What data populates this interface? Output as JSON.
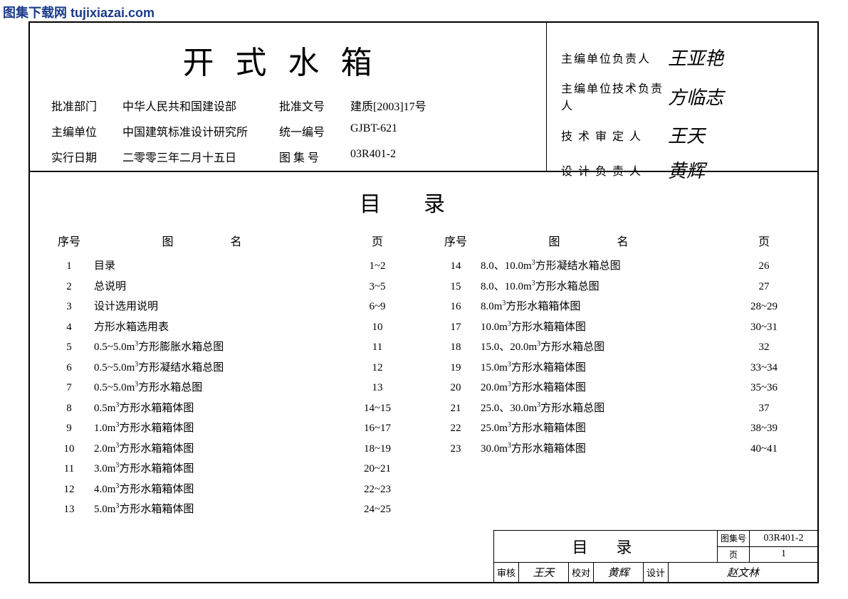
{
  "watermark": "图集下载网 tujixiazai.com",
  "title": "开式水箱",
  "meta": {
    "r1c1_label": "批准部门",
    "r1c1_val": "中华人民共和国建设部",
    "r1c2_label": "批准文号",
    "r1c2_val": "建质[2003]17号",
    "r2c1_label": "主编单位",
    "r2c1_val": "中国建筑标准设计研究所",
    "r2c2_label": "统一编号",
    "r2c2_val": "GJBT-621",
    "r3c1_label": "实行日期",
    "r3c1_val": "二零零三年二月十五日",
    "r3c2_label": "图 集 号",
    "r3c2_val": "03R401-2"
  },
  "signers": {
    "s1_label": "主编单位负责人",
    "s1_val": "王亚艳",
    "s2_label": "主编单位技术负责人",
    "s2_val": "方临志",
    "s3_label": "技 术 审 定 人",
    "s3_val": "王天",
    "s4_label": "设 计 负 责 人",
    "s4_val": "黄辉"
  },
  "toc_title": "目录",
  "toc_head": {
    "num": "序号",
    "name": "图名",
    "page": "页"
  },
  "toc_left": [
    {
      "n": "1",
      "name": "目录",
      "p": "1~2"
    },
    {
      "n": "2",
      "name": "总说明",
      "p": "3~5"
    },
    {
      "n": "3",
      "name": "设计选用说明",
      "p": "6~9"
    },
    {
      "n": "4",
      "name": "方形水箱选用表",
      "p": "10"
    },
    {
      "n": "5",
      "name": "0.5~5.0m³方形膨胀水箱总图",
      "p": "11"
    },
    {
      "n": "6",
      "name": "0.5~5.0m³方形凝结水箱总图",
      "p": "12"
    },
    {
      "n": "7",
      "name": "0.5~5.0m³方形水箱总图",
      "p": "13"
    },
    {
      "n": "8",
      "name": "0.5m³方形水箱箱体图",
      "p": "14~15"
    },
    {
      "n": "9",
      "name": "1.0m³方形水箱箱体图",
      "p": "16~17"
    },
    {
      "n": "10",
      "name": "2.0m³方形水箱箱体图",
      "p": "18~19"
    },
    {
      "n": "11",
      "name": "3.0m³方形水箱箱体图",
      "p": "20~21"
    },
    {
      "n": "12",
      "name": "4.0m³方形水箱箱体图",
      "p": "22~23"
    },
    {
      "n": "13",
      "name": "5.0m³方形水箱箱体图",
      "p": "24~25"
    }
  ],
  "toc_right": [
    {
      "n": "14",
      "name": "8.0、10.0m³方形凝结水箱总图",
      "p": "26"
    },
    {
      "n": "15",
      "name": "8.0、10.0m³方形水箱总图",
      "p": "27"
    },
    {
      "n": "16",
      "name": "8.0m³方形水箱箱体图",
      "p": "28~29"
    },
    {
      "n": "17",
      "name": "10.0m³方形水箱箱体图",
      "p": "30~31"
    },
    {
      "n": "18",
      "name": "15.0、20.0m³方形水箱总图",
      "p": "32"
    },
    {
      "n": "19",
      "name": "15.0m³方形水箱箱体图",
      "p": "33~34"
    },
    {
      "n": "20",
      "name": "20.0m³方形水箱箱体图",
      "p": "35~36"
    },
    {
      "n": "21",
      "name": "25.0、30.0m³方形水箱总图",
      "p": "37"
    },
    {
      "n": "22",
      "name": "25.0m³方形水箱箱体图",
      "p": "38~39"
    },
    {
      "n": "23",
      "name": "30.0m³方形水箱箱体图",
      "p": "40~41"
    }
  ],
  "titleblock": {
    "name": "目录",
    "code_label": "图集号",
    "code_val": "03R401-2",
    "review_label": "审核",
    "review_val": "王天",
    "check_label": "校对",
    "check_val": "黄辉",
    "design_label": "设计",
    "design_val": "赵文林",
    "page_label": "页",
    "page_val": "1"
  }
}
